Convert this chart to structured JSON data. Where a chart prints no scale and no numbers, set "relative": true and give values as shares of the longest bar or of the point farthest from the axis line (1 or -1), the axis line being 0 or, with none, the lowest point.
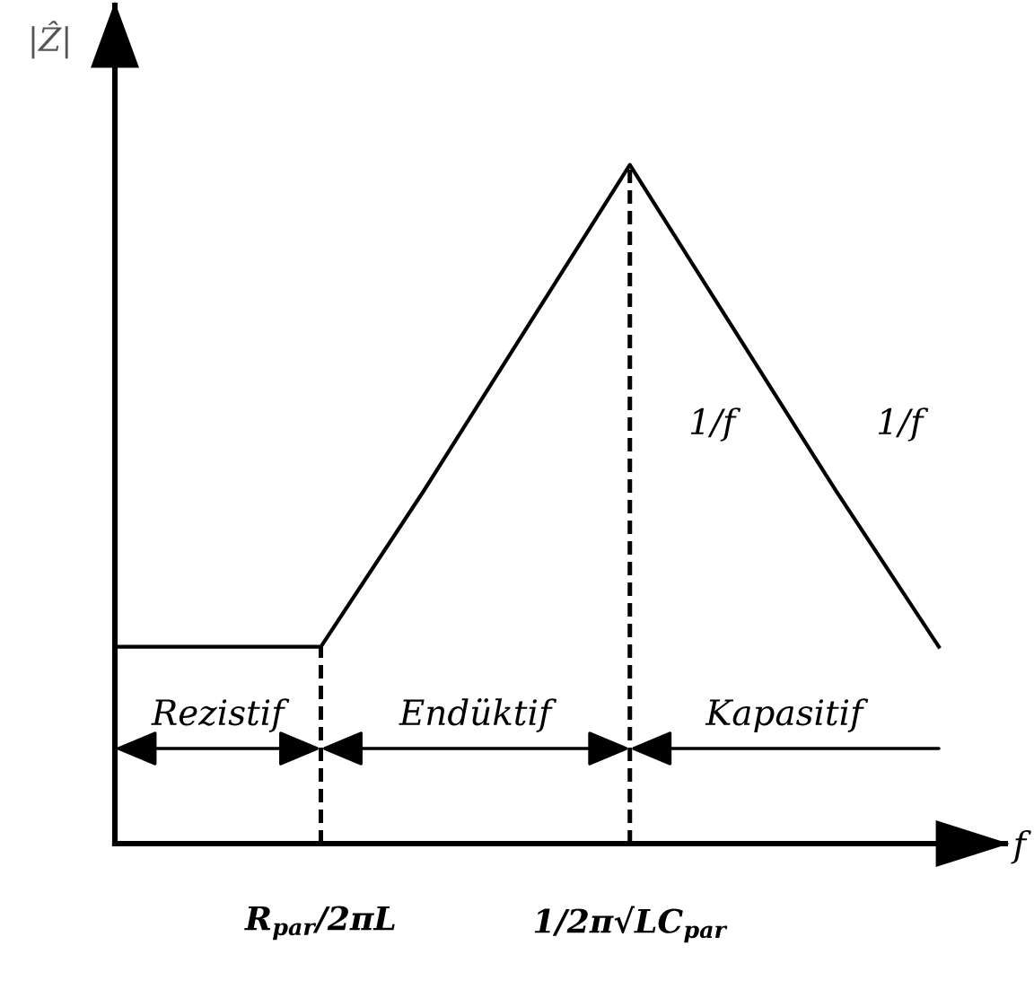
{
  "chart_data": {
    "type": "line",
    "relative": true,
    "xlabel": "f",
    "ylabel": "|Ẑ|",
    "categories": [
      null,
      null,
      "R$_{par}$/2πL",
      null,
      null,
      "1/2π√LC$_{par}$",
      null,
      null,
      null
    ],
    "series": [
      {
        "color": "#000000",
        "values": [
          0.29,
          0.29,
          0.29,
          0.52,
          0.76,
          1,
          0.76,
          0.52,
          0.29
        ]
      }
    ],
    "ref_lines": [
      {
        "axis": "x",
        "value": "R$_{par}$/2πL",
        "line_style": "dashed"
      },
      {
        "axis": "x",
        "value": "1/2π√LC$_{par}$",
        "line_style": "dashed"
      }
    ],
    "annotations": [
      "Rezistif",
      "Endüktif",
      "Kapasitif",
      "1/f",
      "1/f"
    ]
  }
}
